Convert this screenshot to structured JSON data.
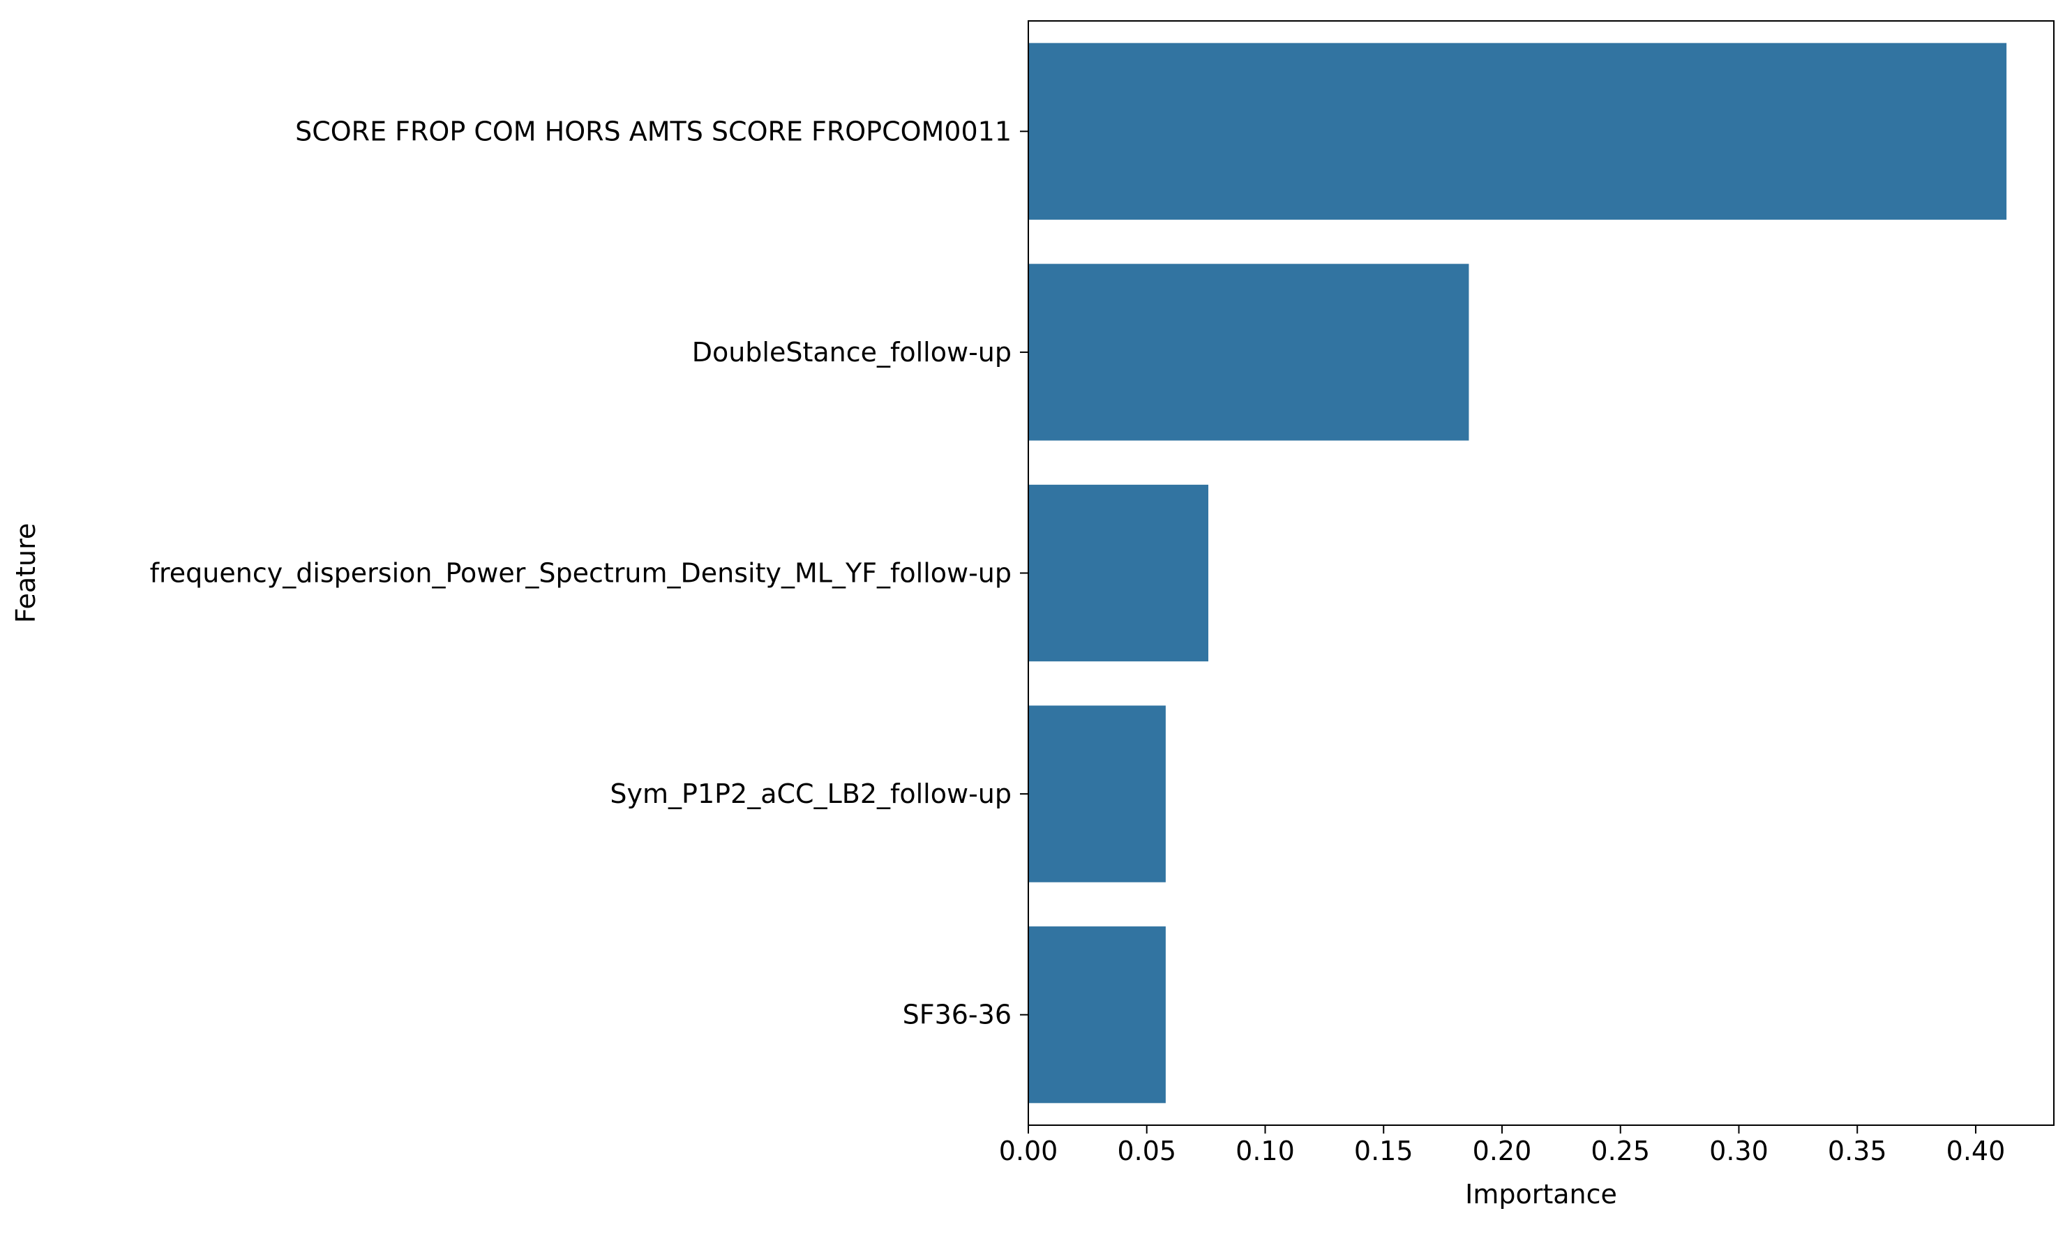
{
  "chart_data": {
    "type": "bar",
    "orientation": "horizontal",
    "categories": [
      "SCORE FROP COM HORS AMTS SCORE FROPCOM0011",
      "DoubleStance_follow-up",
      "frequency_dispersion_Power_Spectrum_Density_ML_YF_follow-up",
      "Sym_P1P2_aCC_LB2_follow-up",
      "SF36-36"
    ],
    "values": [
      0.413,
      0.186,
      0.076,
      0.058,
      0.058
    ],
    "title": "",
    "xlabel": "Importance",
    "ylabel": "Feature",
    "xlim": [
      0,
      0.433
    ],
    "xticks": [
      "0.00",
      "0.05",
      "0.10",
      "0.15",
      "0.20",
      "0.25",
      "0.30",
      "0.35",
      "0.40"
    ],
    "xtick_values": [
      0,
      0.05,
      0.1,
      0.15,
      0.2,
      0.25,
      0.3,
      0.35,
      0.4
    ],
    "bar_color": "#3274a1",
    "grid": false,
    "legend": "none"
  }
}
